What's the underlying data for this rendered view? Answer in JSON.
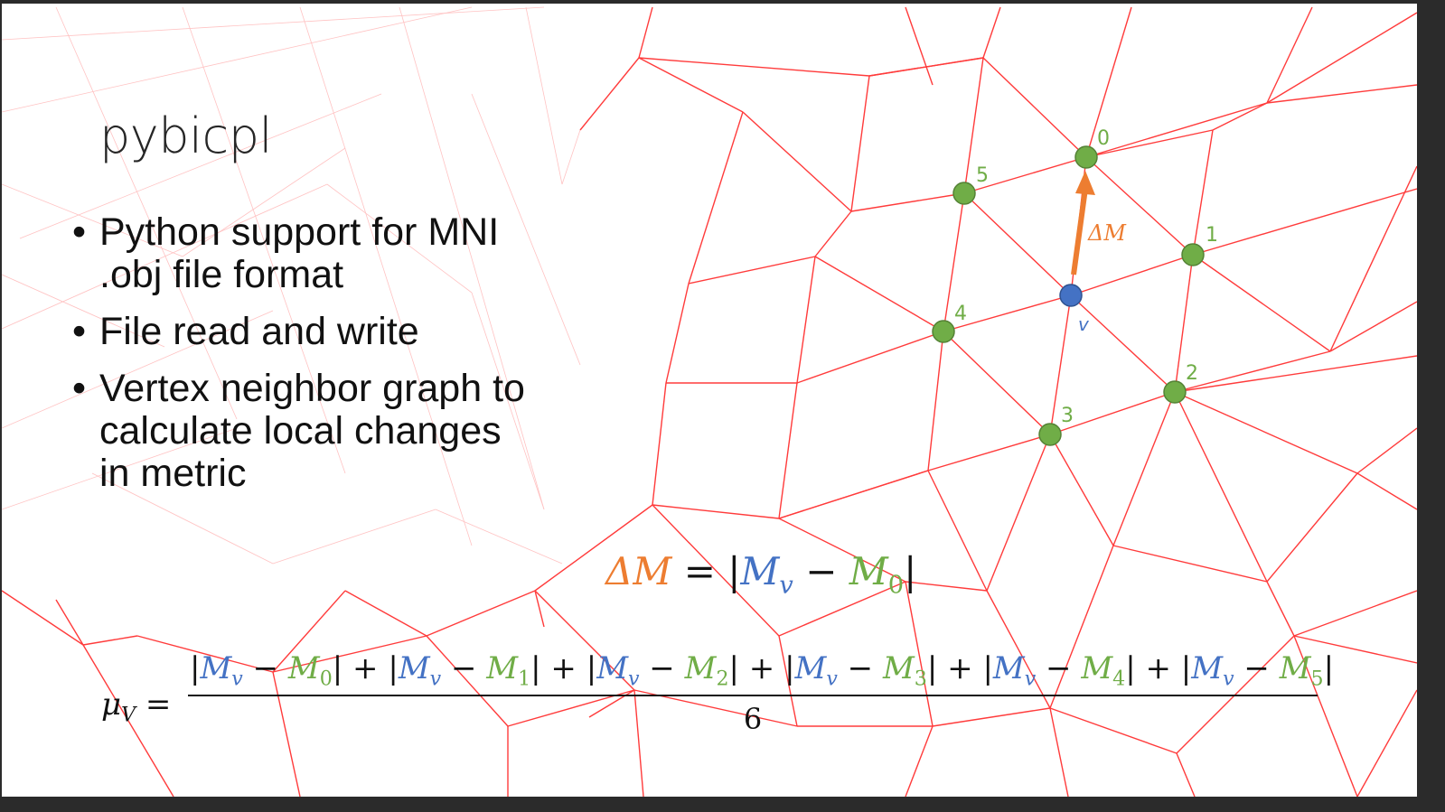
{
  "slide": {
    "title": "pybicpl",
    "bullets": [
      "Python support for MNI .obj file format",
      "File read and write",
      "Vertex neighbor graph to calculate local changes in metric"
    ],
    "bullet_glyph": "•"
  },
  "diagram": {
    "center_vertex_label": "v",
    "neighbor_labels": [
      "0",
      "1",
      "2",
      "3",
      "4",
      "5"
    ],
    "arrow_label": "ΔM",
    "colors": {
      "mesh": "#ff3b3b",
      "neighbor": "#70ad47",
      "center": "#4472c4",
      "arrow": "#ed7d31"
    }
  },
  "equations": {
    "delta": {
      "lhs": "ΔM",
      "eq": " = ",
      "open": "|",
      "mv": "M",
      "mv_sub": "v",
      "minus": " − ",
      "m0": "M",
      "m0_sub": "0",
      "close": "|"
    },
    "mean": {
      "lhs": "μ",
      "lhs_sub": "V",
      "eq": " = ",
      "denominator": "6",
      "terms": [
        {
          "m": "M",
          "v_sub": "v",
          "k": "M",
          "k_sub": "0"
        },
        {
          "m": "M",
          "v_sub": "v",
          "k": "M",
          "k_sub": "1"
        },
        {
          "m": "M",
          "v_sub": "v",
          "k": "M",
          "k_sub": "2"
        },
        {
          "m": "M",
          "v_sub": "v",
          "k": "M",
          "k_sub": "3"
        },
        {
          "m": "M",
          "v_sub": "v",
          "k": "M",
          "k_sub": "4"
        },
        {
          "m": "M",
          "v_sub": "v",
          "k": "M",
          "k_sub": "5"
        }
      ],
      "plus": " + ",
      "minus": " − ",
      "bar": "|"
    }
  }
}
